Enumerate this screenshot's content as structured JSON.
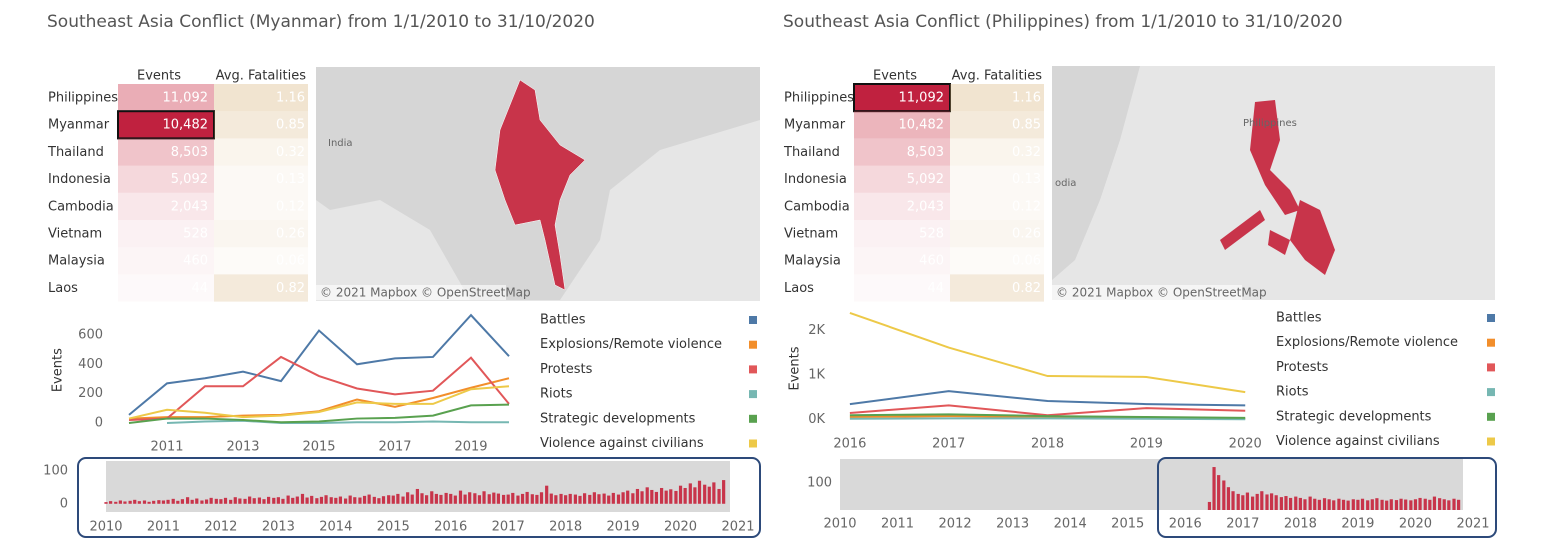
{
  "dashboards": [
    {
      "title": "Southeast Asia Conflict (Myanmar) from 1/1/2010 to 31/10/2020",
      "table": {
        "headers": [
          "Events",
          "Avg. Fatalities"
        ],
        "selected_row": 1,
        "rows": [
          [
            "Philippines",
            "11,092",
            "1.16"
          ],
          [
            "Myanmar",
            "10,482",
            "0.85"
          ],
          [
            "Thailand",
            "8,503",
            "0.32"
          ],
          [
            "Indonesia",
            "5,092",
            "0.13"
          ],
          [
            "Cambodia",
            "2,043",
            "0.12"
          ],
          [
            "Vietnam",
            "528",
            "0.26"
          ],
          [
            "Malaysia",
            "460",
            "0.06"
          ],
          [
            "Laos",
            "44",
            "0.82"
          ]
        ]
      },
      "map": {
        "labels": [
          "India"
        ],
        "attribution": "© 2021 Mapbox © OpenStreetMap"
      }
    },
    {
      "title": "Southeast Asia Conflict (Philippines) from 1/1/2010 to 31/10/2020",
      "table": {
        "headers": [
          "Events",
          "Avg. Fatalities"
        ],
        "selected_row": 0,
        "rows": [
          [
            "Philippines",
            "11,092",
            "1.16"
          ],
          [
            "Myanmar",
            "10,482",
            "0.85"
          ],
          [
            "Thailand",
            "8,503",
            "0.32"
          ],
          [
            "Indonesia",
            "5,092",
            "0.13"
          ],
          [
            "Cambodia",
            "2,043",
            "0.12"
          ],
          [
            "Vietnam",
            "528",
            "0.26"
          ],
          [
            "Malaysia",
            "460",
            "0.06"
          ],
          [
            "Laos",
            "44",
            "0.82"
          ]
        ]
      },
      "map": {
        "labels": [
          "Philippines",
          "odia"
        ],
        "attribution": "© 2021 Mapbox © OpenStreetMap"
      }
    }
  ],
  "chart_data": [
    {
      "type": "line",
      "y_label": "Events",
      "legend": "right",
      "x": [
        2010,
        2011,
        2012,
        2013,
        2014,
        2015,
        2016,
        2017,
        2018,
        2019,
        2020
      ],
      "xlim": [
        2009.5,
        2020.5
      ],
      "xticks": [
        2011,
        2013,
        2015,
        2017,
        2019
      ],
      "ylim": [
        -80,
        800
      ],
      "yticks": [
        0,
        200,
        400,
        600
      ],
      "series": [
        {
          "name": "Battles",
          "color": "#4e79a7",
          "values": [
            55,
            270,
            305,
            350,
            285,
            630,
            400,
            440,
            450,
            735,
            455
          ]
        },
        {
          "name": "Explosions/Remote violence",
          "color": "#f28e2b",
          "values": [
            30,
            40,
            40,
            50,
            55,
            80,
            160,
            110,
            170,
            240,
            305
          ]
        },
        {
          "name": "Protests",
          "color": "#e15759",
          "values": [
            20,
            30,
            250,
            250,
            450,
            320,
            235,
            195,
            220,
            445,
            130
          ]
        },
        {
          "name": "Riots",
          "color": "#76b7b2",
          "values": [
            null,
            0,
            10,
            15,
            0,
            0,
            5,
            5,
            10,
            5,
            5
          ]
        },
        {
          "name": "Strategic developments",
          "color": "#59a14f",
          "values": [
            0,
            30,
            30,
            20,
            5,
            10,
            30,
            35,
            50,
            120,
            125
          ]
        },
        {
          "name": "Violence against civilians",
          "color": "#edc948",
          "values": [
            30,
            90,
            70,
            40,
            50,
            75,
            140,
            130,
            130,
            230,
            250
          ]
        }
      ]
    },
    {
      "type": "bar",
      "color": "#c8344a",
      "xlim": [
        2010,
        2021
      ],
      "xticks": [
        2010,
        2011,
        2012,
        2013,
        2014,
        2015,
        2016,
        2017,
        2018,
        2019,
        2020,
        2021
      ],
      "ylim": [
        -25,
        130
      ],
      "yticks": [
        0,
        100
      ],
      "x": [
        2010.0,
        2010.08,
        2010.17,
        2010.25,
        2010.33,
        2010.42,
        2010.5,
        2010.58,
        2010.67,
        2010.75,
        2010.83,
        2010.92,
        2011.0,
        2011.08,
        2011.17,
        2011.25,
        2011.33,
        2011.42,
        2011.5,
        2011.58,
        2011.67,
        2011.75,
        2011.83,
        2011.92,
        2012.0,
        2012.08,
        2012.17,
        2012.25,
        2012.33,
        2012.42,
        2012.5,
        2012.58,
        2012.67,
        2012.75,
        2012.83,
        2012.92,
        2013.0,
        2013.08,
        2013.17,
        2013.25,
        2013.33,
        2013.42,
        2013.5,
        2013.58,
        2013.67,
        2013.75,
        2013.83,
        2013.92,
        2014.0,
        2014.08,
        2014.17,
        2014.25,
        2014.33,
        2014.42,
        2014.5,
        2014.58,
        2014.67,
        2014.75,
        2014.83,
        2014.92,
        2015.0,
        2015.08,
        2015.17,
        2015.25,
        2015.33,
        2015.42,
        2015.5,
        2015.58,
        2015.67,
        2015.75,
        2015.83,
        2015.92,
        2016.0,
        2016.08,
        2016.17,
        2016.25,
        2016.33,
        2016.42,
        2016.5,
        2016.58,
        2016.67,
        2016.75,
        2016.83,
        2016.92,
        2017.0,
        2017.08,
        2017.17,
        2017.25,
        2017.33,
        2017.42,
        2017.5,
        2017.58,
        2017.67,
        2017.75,
        2017.83,
        2017.92,
        2018.0,
        2018.08,
        2018.17,
        2018.25,
        2018.33,
        2018.42,
        2018.5,
        2018.58,
        2018.67,
        2018.75,
        2018.83,
        2018.92,
        2019.0,
        2019.08,
        2019.17,
        2019.25,
        2019.33,
        2019.42,
        2019.5,
        2019.58,
        2019.67,
        2019.75,
        2019.83,
        2019.92,
        2020.0,
        2020.08,
        2020.17,
        2020.25,
        2020.33,
        2020.42,
        2020.5,
        2020.58,
        2020.67,
        2020.75
      ],
      "values": [
        5,
        8,
        6,
        10,
        7,
        9,
        12,
        8,
        10,
        6,
        9,
        11,
        10,
        12,
        15,
        9,
        14,
        20,
        12,
        16,
        10,
        13,
        18,
        15,
        14,
        18,
        12,
        20,
        16,
        15,
        22,
        17,
        19,
        14,
        21,
        18,
        20,
        15,
        25,
        18,
        22,
        30,
        19,
        24,
        17,
        21,
        26,
        20,
        18,
        22,
        16,
        25,
        20,
        19,
        24,
        28,
        21,
        17,
        23,
        26,
        25,
        30,
        22,
        35,
        28,
        45,
        32,
        26,
        38,
        30,
        27,
        33,
        30,
        25,
        40,
        28,
        35,
        32,
        26,
        38,
        29,
        34,
        31,
        27,
        28,
        33,
        25,
        30,
        36,
        29,
        27,
        35,
        55,
        31,
        26,
        30,
        26,
        30,
        28,
        24,
        32,
        27,
        35,
        29,
        31,
        25,
        33,
        28,
        35,
        40,
        32,
        45,
        38,
        50,
        42,
        36,
        48,
        40,
        44,
        39,
        55,
        48,
        62,
        50,
        70,
        58,
        52,
        65,
        45,
        72
      ]
    },
    {
      "type": "line",
      "y_label": "Events",
      "legend": "right",
      "x": [
        2016,
        2017,
        2018,
        2019,
        2020
      ],
      "xlim": [
        2015.9,
        2020.2
      ],
      "xticks": [
        2016,
        2017,
        2018,
        2019,
        2020
      ],
      "ylim": [
        -300,
        2600
      ],
      "yticks": [
        {
          "value": 0,
          "label": "0K"
        },
        {
          "value": 1000,
          "label": "1K"
        },
        {
          "value": 2000,
          "label": "2K"
        }
      ],
      "series": [
        {
          "name": "Battles",
          "color": "#4e79a7",
          "values": [
            350,
            640,
            420,
            350,
            320
          ]
        },
        {
          "name": "Explosions/Remote violence",
          "color": "#f28e2b",
          "values": [
            60,
            80,
            60,
            40,
            20
          ]
        },
        {
          "name": "Protests",
          "color": "#e15759",
          "values": [
            150,
            320,
            100,
            260,
            200
          ]
        },
        {
          "name": "Riots",
          "color": "#76b7b2",
          "values": [
            20,
            30,
            30,
            20,
            10
          ]
        },
        {
          "name": "Strategic developments",
          "color": "#59a14f",
          "values": [
            100,
            120,
            80,
            60,
            40
          ]
        },
        {
          "name": "Violence against civilians",
          "color": "#edc948",
          "values": [
            2400,
            1620,
            980,
            960,
            620
          ]
        }
      ]
    },
    {
      "type": "bar",
      "color": "#c8344a",
      "xlim": [
        2010,
        2021
      ],
      "xticks": [
        2010,
        2011,
        2012,
        2013,
        2014,
        2015,
        2016,
        2017,
        2018,
        2019,
        2020,
        2021
      ],
      "ylim": [
        0,
        190
      ],
      "yticks": [
        100
      ],
      "x": [
        2016.42,
        2016.5,
        2016.58,
        2016.67,
        2016.75,
        2016.83,
        2016.92,
        2017.0,
        2017.08,
        2017.17,
        2017.25,
        2017.33,
        2017.42,
        2017.5,
        2017.58,
        2017.67,
        2017.75,
        2017.83,
        2017.92,
        2018.0,
        2018.08,
        2018.17,
        2018.25,
        2018.33,
        2018.42,
        2018.5,
        2018.58,
        2018.67,
        2018.75,
        2018.83,
        2018.92,
        2019.0,
        2019.08,
        2019.17,
        2019.25,
        2019.33,
        2019.42,
        2019.5,
        2019.58,
        2019.67,
        2019.75,
        2019.83,
        2019.92,
        2020.0,
        2020.08,
        2020.17,
        2020.25,
        2020.33,
        2020.42,
        2020.5,
        2020.58,
        2020.67,
        2020.75
      ],
      "values": [
        30,
        160,
        130,
        110,
        85,
        70,
        60,
        55,
        65,
        50,
        60,
        70,
        58,
        62,
        55,
        48,
        52,
        45,
        50,
        45,
        40,
        50,
        42,
        38,
        44,
        40,
        36,
        42,
        38,
        35,
        40,
        38,
        42,
        36,
        40,
        44,
        38,
        35,
        40,
        37,
        42,
        39,
        36,
        40,
        45,
        42,
        38,
        50,
        44,
        40,
        36,
        42,
        38
      ]
    }
  ]
}
